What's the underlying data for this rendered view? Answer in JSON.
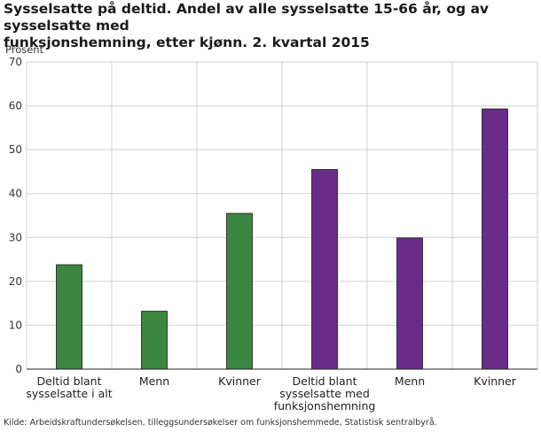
{
  "title_lines": [
    "Sysselsatte på deltid. Andel av alle sysselsatte 15-66 år, og av sysselsatte med",
    "funksjonshemning, etter kjønn. 2. kvartal 2015"
  ],
  "source": "Kilde: Arbeidskraftundersøkelsen, tilleggsundersøkelser om funksjonshemmede, Statistisk sentralbyrå.",
  "chart_data": {
    "type": "bar",
    "title": "Sysselsatte på deltid. Andel av alle sysselsatte 15-66 år, og av sysselsatte med funksjonshemning, etter kjønn. 2. kvartal 2015",
    "ylabel": "Prosent",
    "xlabel": "",
    "ylim": [
      0,
      70
    ],
    "yticks": [
      0,
      10,
      20,
      30,
      40,
      50,
      60,
      70
    ],
    "grid": true,
    "legend": "none",
    "categories": [
      [
        "Deltid blant",
        "sysselsatte i alt"
      ],
      [
        "Menn"
      ],
      [
        "Kvinner"
      ],
      [
        "Deltid blant",
        "sysselsatte med",
        "funksjonshemning"
      ],
      [
        "Menn"
      ],
      [
        "Kvinner"
      ]
    ],
    "values": [
      23.8,
      13.2,
      35.5,
      45.5,
      29.9,
      59.3
    ],
    "colors": [
      "#3a8540",
      "#3a8540",
      "#3a8540",
      "#6a2b88",
      "#6a2b88",
      "#6a2b88"
    ]
  }
}
